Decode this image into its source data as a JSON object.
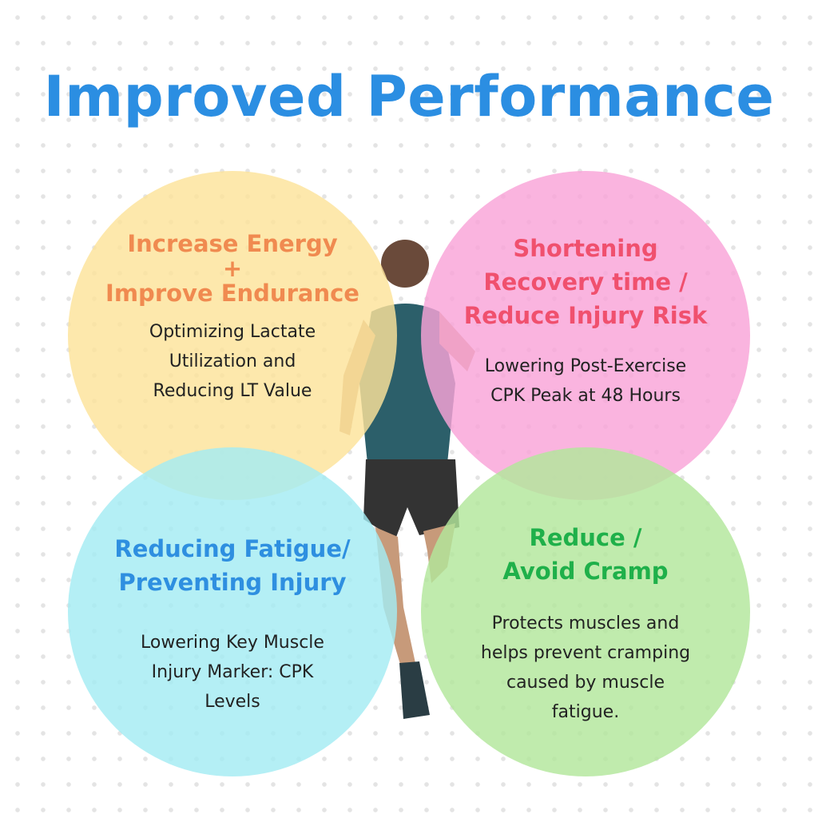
{
  "title": "Improved Performance",
  "colors": {
    "title": "#2b8ee2",
    "yellow": "#fce39a",
    "pink": "#f9a3d8",
    "cyan": "#a4ecf3",
    "green": "#b2e79b"
  },
  "quadrants": [
    {
      "heading_lines": [
        "Increase Energy",
        "+",
        "Improve Endurance"
      ],
      "body_lines": [
        "Optimizing Lactate",
        "Utilization and",
        "Reducing LT Value"
      ]
    },
    {
      "heading_lines": [
        "Shortening",
        "Recovery time /",
        "Reduce Injury Risk"
      ],
      "body_lines": [
        "Lowering Post-Exercise",
        "CPK Peak at 48 Hours"
      ]
    },
    {
      "heading_lines": [
        "Reducing Fatigue/",
        "Preventing Injury"
      ],
      "body_lines": [
        "Lowering Key Muscle",
        "Injury Marker: CPK",
        "Levels"
      ]
    },
    {
      "heading_lines": [
        "Reduce /",
        "Avoid Cramp"
      ],
      "body_lines": [
        "Protects muscles and",
        "helps prevent cramping",
        "caused by muscle",
        "fatigue."
      ]
    }
  ]
}
